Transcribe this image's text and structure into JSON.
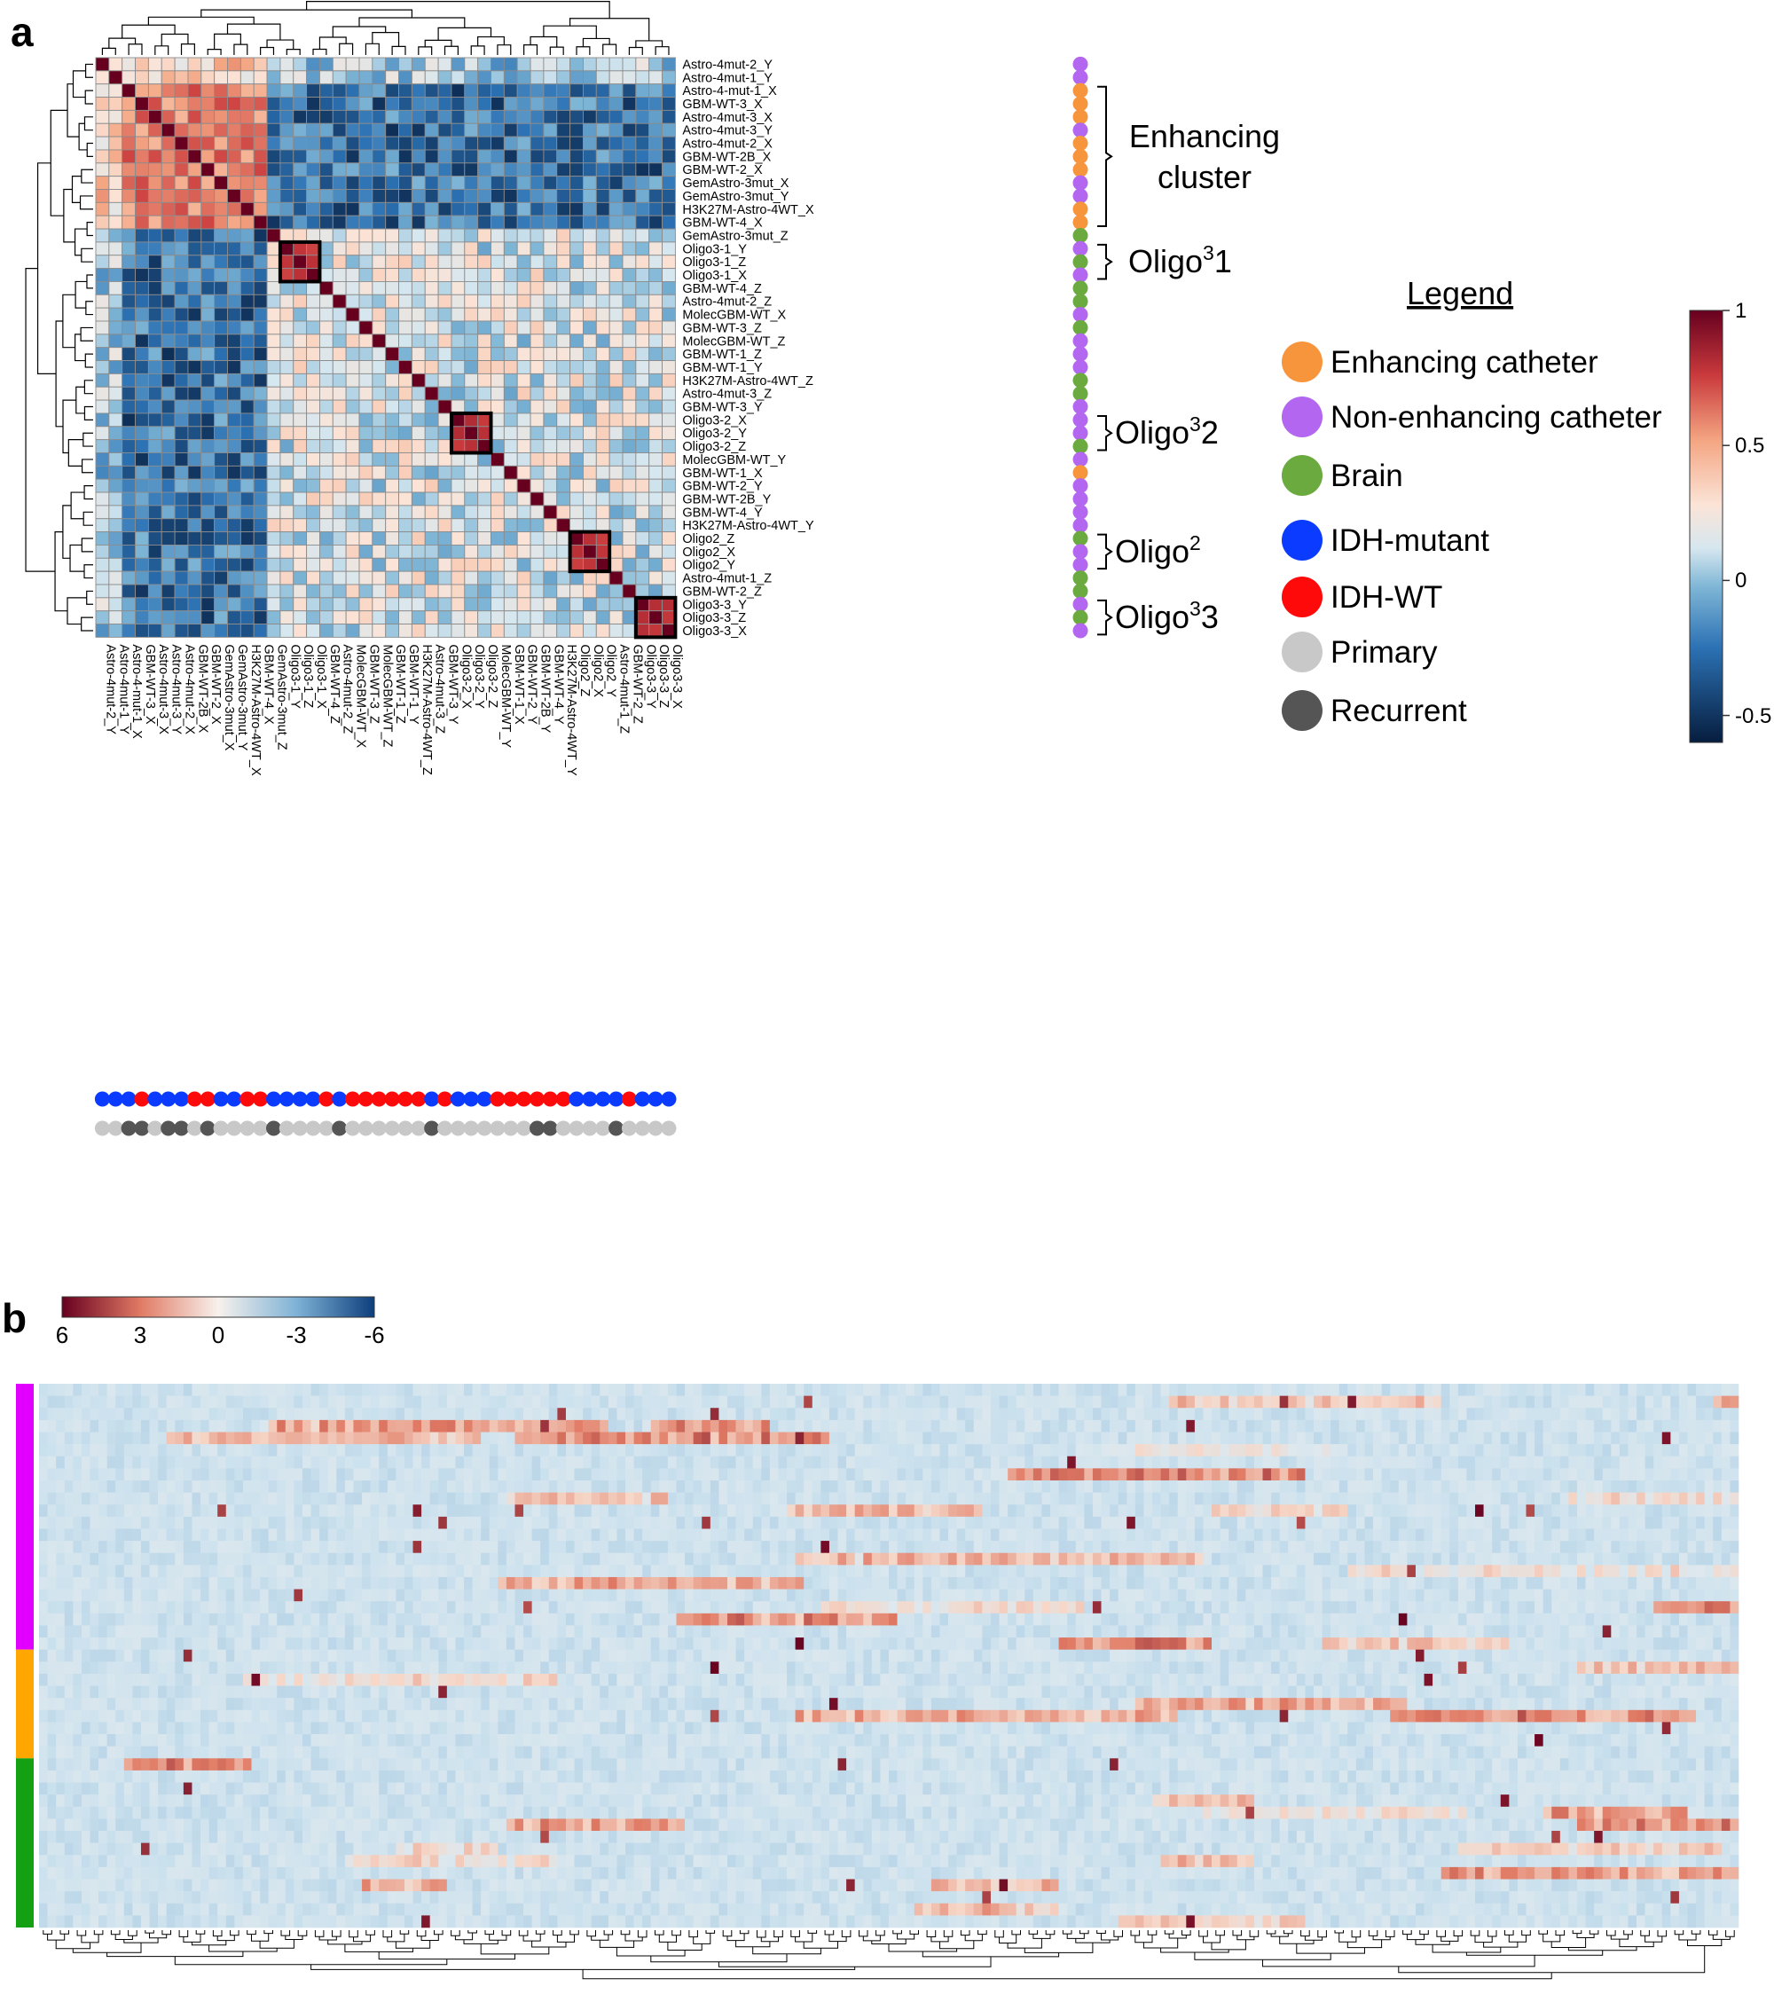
{
  "panel_a": {
    "label": "a",
    "chart_data": {
      "type": "heatmap",
      "title": "",
      "samples": [
        "Astro-4mut-2_Y",
        "Astro-4mut-1_Y",
        "Astro-4-mut-1_X",
        "GBM-WT-3_X",
        "Astro-4mut-3_X",
        "Astro-4mut-3_Y",
        "Astro-4mut-2_X",
        "GBM-WT-2B_X",
        "GBM-WT-2_X",
        "GemAstro-3mut_X",
        "GemAstro-3mut_Y",
        "H3K27M-Astro-4WT_X",
        "GBM-WT-4_X",
        "GemAstro-3mut_Z",
        "Oligo3-1_Y",
        "Oligo3-1_Z",
        "Oligo3-1_X",
        "GBM-WT-4_Z",
        "Astro-4mut-2_Z",
        "MolecGBM-WT_X",
        "GBM-WT-3_Z",
        "MolecGBM-WT_Z",
        "GBM-WT-1_Z",
        "GBM-WT-1_Y",
        "H3K27M-Astro-4WT_Z",
        "Astro-4mut-3_Z",
        "GBM-WT-3_Y",
        "Oligo3-2_X",
        "Oligo3-2_Y",
        "Oligo3-2_Z",
        "MolecGBM-WT_Y",
        "GBM-WT-1_X",
        "GBM-WT-2_Y",
        "GBM-WT-2B_Y",
        "GBM-WT-4_Y",
        "H3K27M-Astro-4WT_Y",
        "Oligo2_Z",
        "Oligo2_X",
        "Oligo2_Y",
        "Astro-4mut-1_Z",
        "GBM-WT-2_Z",
        "Oligo3-3_Y",
        "Oligo3-3_Z",
        "Oligo3-3_X"
      ],
      "sample_type": [
        "N",
        "N",
        "E",
        "E",
        "E",
        "N",
        "E",
        "E",
        "E",
        "N",
        "N",
        "E",
        "E",
        "B",
        "N",
        "B",
        "N",
        "B",
        "B",
        "N",
        "B",
        "N",
        "N",
        "N",
        "B",
        "B",
        "N",
        "N",
        "N",
        "B",
        "N",
        "E",
        "N",
        "N",
        "N",
        "N",
        "B",
        "N",
        "N",
        "B",
        "B",
        "N",
        "B",
        "N"
      ],
      "idh_status": [
        "M",
        "M",
        "M",
        "W",
        "M",
        "M",
        "M",
        "W",
        "W",
        "M",
        "M",
        "W",
        "W",
        "M",
        "M",
        "M",
        "M",
        "W",
        "M",
        "W",
        "W",
        "W",
        "W",
        "W",
        "W",
        "M",
        "W",
        "M",
        "M",
        "M",
        "W",
        "W",
        "W",
        "W",
        "W",
        "W",
        "M",
        "M",
        "M",
        "M",
        "W",
        "M",
        "M",
        "M"
      ],
      "recurrence": [
        "P",
        "P",
        "R",
        "R",
        "P",
        "R",
        "R",
        "P",
        "R",
        "P",
        "P",
        "P",
        "P",
        "R",
        "P",
        "P",
        "P",
        "P",
        "R",
        "P",
        "P",
        "P",
        "P",
        "P",
        "P",
        "R",
        "P",
        "P",
        "P",
        "P",
        "P",
        "P",
        "P",
        "R",
        "R",
        "P",
        "P",
        "P",
        "P",
        "R",
        "P",
        "P",
        "P",
        "P"
      ],
      "enhancing_cluster": {
        "start": 2,
        "end": 12,
        "values_within": 0.5,
        "values_vs_rest": -0.35
      },
      "highlighted_blocks": [
        {
          "label": "Oligo³1",
          "start": 14,
          "end": 16,
          "value": 0.8
        },
        {
          "label": "Oligo³2",
          "start": 27,
          "end": 29,
          "value": 0.8
        },
        {
          "label": "Oligo²",
          "start": 36,
          "end": 38,
          "value": 0.8
        },
        {
          "label": "Oligo³3",
          "start": 41,
          "end": 43,
          "value": 0.8
        }
      ],
      "diagonal_value": 1,
      "colorbar": {
        "range": [
          -0.6,
          1
        ],
        "ticks": [
          "1",
          "0.5",
          "0",
          "-0.5"
        ],
        "tick_values": [
          1,
          0.5,
          0,
          -0.5
        ]
      }
    },
    "cluster_labels": [
      {
        "line1": "Enhancing",
        "line2": "cluster",
        "start": 2,
        "end": 12
      },
      {
        "base": "Oligo",
        "sup": "3",
        "tail": "1",
        "start": 14,
        "end": 16
      },
      {
        "base": "Oligo",
        "sup": "3",
        "tail": "2",
        "start": 27,
        "end": 29
      },
      {
        "base": "Oligo",
        "sup": "2",
        "tail": "",
        "start": 36,
        "end": 38
      },
      {
        "base": "Oligo",
        "sup": "3",
        "tail": "3",
        "start": 41,
        "end": 43
      }
    ],
    "legend": {
      "title": "Legend",
      "items": [
        {
          "label": "Enhancing catheter",
          "color": "#f7953d"
        },
        {
          "label": "Non-enhancing catheter",
          "color": "#b366f0"
        },
        {
          "label": "Brain",
          "color": "#6aaa3f"
        },
        {
          "label": "IDH-mutant",
          "color": "#0a3bff"
        },
        {
          "label": "IDH-WT",
          "color": "#ff0a0a"
        },
        {
          "label": "Primary",
          "color": "#c8c8c8"
        },
        {
          "label": "Recurrent",
          "color": "#555555"
        }
      ]
    }
  },
  "panel_b": {
    "label": "b",
    "chart_data": {
      "type": "heatmap",
      "rows": 45,
      "columns": 200,
      "row_groups": [
        {
          "color": "#e100ff",
          "rows": 22
        },
        {
          "color": "#ffa600",
          "rows": 9
        },
        {
          "color": "#13a113",
          "rows": 14
        }
      ],
      "colorbar": {
        "range": [
          6,
          -6
        ],
        "ticks": [
          "6",
          "3",
          "0",
          "-3",
          "-6"
        ],
        "tick_values": [
          6,
          3,
          0,
          -3,
          -6
        ]
      }
    }
  }
}
